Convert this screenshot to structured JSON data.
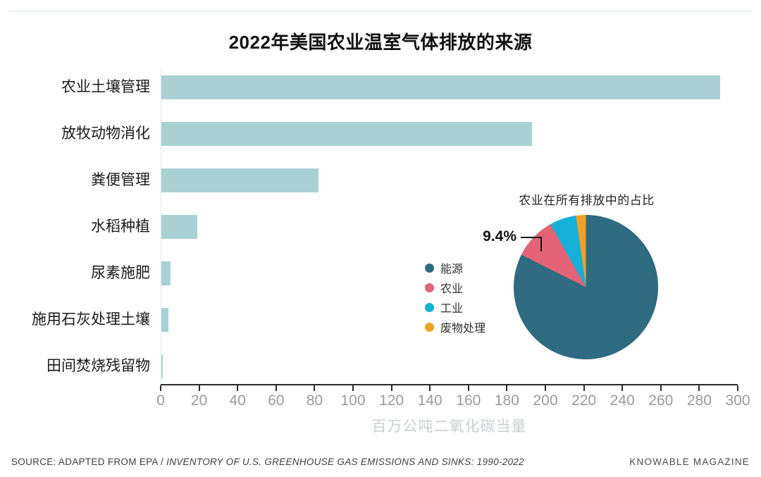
{
  "page": {
    "title": "2022年美国农业温室气体排放的来源",
    "footer": {
      "source_prefix": "SOURCE: ADAPTED FROM EPA / ",
      "source_italic": "INVENTORY OF U.S. GREENHOUSE GAS EMISSIONS AND SINKS: 1990-2022",
      "brand": "KNOWABLE MAGAZINE"
    }
  },
  "colors": {
    "bar_fill": "#a9d1d3",
    "axis_line": "#2a2a2a",
    "tick_label": "#9a9a9a",
    "axis_title": "#c9cfcf"
  },
  "chart_data": [
    {
      "type": "bar",
      "orientation": "horizontal",
      "title": "2022年美国农业温室气体排放的来源",
      "categories": [
        "农业土壤管理",
        "放牧动物消化",
        "粪便管理",
        "水稻种植",
        "尿素施肥",
        "施用石灰处理土壤",
        "田间焚烧残留物"
      ],
      "values": [
        291,
        193,
        82,
        19,
        5,
        4,
        1
      ],
      "xlabel": "百万公吨二氧化碳当量",
      "xlim": [
        0,
        300
      ],
      "xticks": [
        0,
        20,
        40,
        60,
        80,
        100,
        120,
        140,
        160,
        180,
        200,
        220,
        240,
        260,
        280,
        300
      ],
      "bar_color": "#a9d1d3",
      "grid": false,
      "legend_position": "none"
    },
    {
      "type": "pie",
      "title": "农业在所有排放中的占比",
      "labels": [
        "能源",
        "农业",
        "工业",
        "废物处理"
      ],
      "values": [
        82.4,
        9.4,
        6.0,
        2.2
      ],
      "colors": [
        "#2e6a80",
        "#e56376",
        "#16b0d8",
        "#f0a125"
      ],
      "start_angle_deg": 0,
      "direction": "clockwise",
      "annotation": {
        "text": "9.4%",
        "target": "农业"
      },
      "legend_position": "left",
      "legend_entries": [
        "能源",
        "农业",
        "工业",
        "废物处理"
      ]
    }
  ]
}
